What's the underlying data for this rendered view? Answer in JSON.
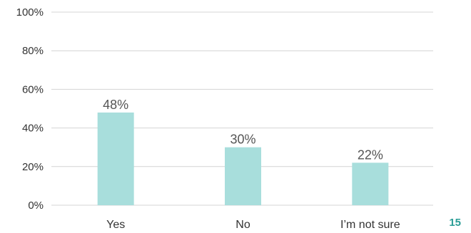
{
  "chart_data": {
    "type": "bar",
    "categories": [
      "Yes",
      "No",
      "I’m not sure"
    ],
    "values": [
      48,
      30,
      22
    ],
    "data_labels": [
      "48%",
      "30%",
      "22%"
    ],
    "ylim": [
      0,
      100
    ],
    "yticks": [
      {
        "value": 0,
        "label": "0%"
      },
      {
        "value": 20,
        "label": "20%"
      },
      {
        "value": 40,
        "label": "40%"
      },
      {
        "value": 60,
        "label": "60%"
      },
      {
        "value": 80,
        "label": "80%"
      },
      {
        "value": 100,
        "label": "100%"
      }
    ],
    "grid": true,
    "bar_color": "#a8dedc",
    "title": "",
    "xlabel": "",
    "ylabel": ""
  },
  "page": {
    "number": "15",
    "number_color": "#2a9d96"
  }
}
